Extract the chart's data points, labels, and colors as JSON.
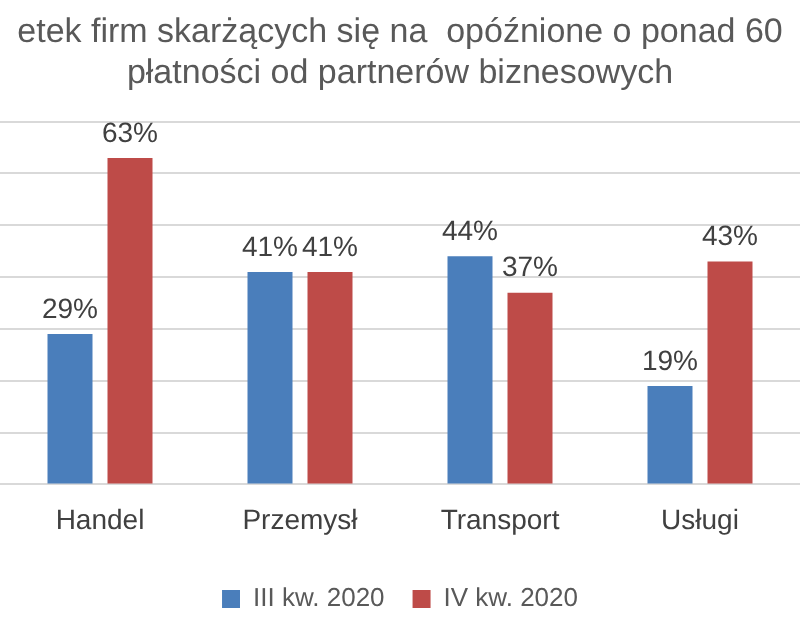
{
  "chart_data": {
    "type": "bar",
    "title": "etek firm skarżących się na  opóźnione o ponad 60\npłatności od partnerów biznesowych",
    "categories": [
      "Handel",
      "Przemysł",
      "Transport",
      "Usługi"
    ],
    "series": [
      {
        "name": "III kw. 2020",
        "color": "#4a7ebb",
        "values": [
          29,
          41,
          44,
          19
        ],
        "value_labels": [
          "29%",
          "41%",
          "44%",
          "19%"
        ]
      },
      {
        "name": "IV kw. 2020",
        "color": "#be4b48",
        "values": [
          63,
          41,
          37,
          43
        ],
        "value_labels": [
          "63%",
          "41%",
          "37%",
          "43%"
        ]
      }
    ],
    "ylim": [
      0,
      70
    ],
    "tick_labels": "x",
    "grid": "y",
    "legend": "bottom"
  }
}
